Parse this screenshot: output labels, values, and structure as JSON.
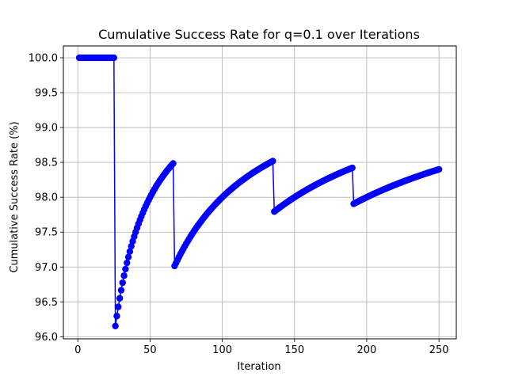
{
  "chart_data": {
    "type": "line",
    "title": "Cumulative Success Rate for q=0.1 over Iterations",
    "xlabel": "Iteration",
    "ylabel": "Cumulative Success Rate (%)",
    "xlim": [
      -10,
      262
    ],
    "ylim": [
      95.97,
      100.17
    ],
    "xticks": [
      0,
      50,
      100,
      150,
      200,
      250
    ],
    "yticks": [
      96.0,
      96.5,
      97.0,
      97.5,
      98.0,
      98.5,
      99.0,
      99.5,
      100.0
    ],
    "ytick_labels": [
      "96.0",
      "96.5",
      "97.0",
      "97.5",
      "98.0",
      "98.5",
      "99.0",
      "99.5",
      "100.0"
    ],
    "grid": true,
    "legend": false,
    "color": "#0000ff",
    "marker": "circle",
    "series": [
      {
        "segments": [
          {
            "start": 1,
            "end": 25,
            "failures_before": 0
          },
          {
            "start": 26,
            "end": 66,
            "failures_before": 1
          },
          {
            "start": 67,
            "end": 135,
            "failures_before": 2
          },
          {
            "start": 136,
            "end": 190,
            "failures_before": 3
          },
          {
            "start": 191,
            "end": 250,
            "failures_before": 4
          }
        ],
        "failure_iterations": [
          26,
          67,
          136,
          191
        ]
      }
    ]
  }
}
